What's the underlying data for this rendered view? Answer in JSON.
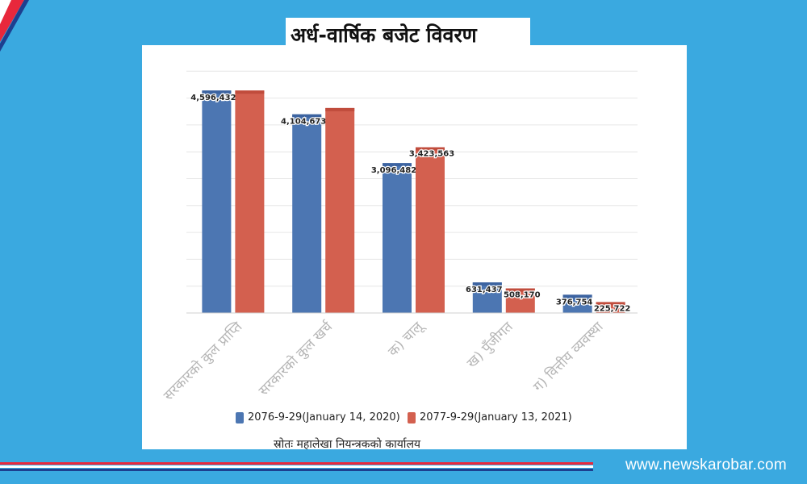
{
  "header": {
    "title": "अर्ध-वार्षिक बजेट विवरण"
  },
  "footer": {
    "source": "स्रोतः महालेखा नियन्त्रकको कार्यालय",
    "website": "www.newskarobar.com"
  },
  "colors": {
    "background": "#3aa9e0",
    "series_2076": "#4c76b2",
    "series_2077": "#d3604f"
  },
  "chart_data": {
    "type": "bar",
    "title": "अर्ध-वार्षिक बजेट विवरण",
    "categories": [
      "सरकारको कुल प्राप्ति",
      "सरकारको कुल खर्च",
      "क) चालू",
      "ख) पुँजीगत",
      "ग) वित्तीय व्यवस्था"
    ],
    "series": [
      {
        "name": "2076-9-29(January 14, 2020)",
        "values": [
          4596432,
          4104673,
          3096482,
          631437,
          376754
        ],
        "labels": [
          "4,596,432",
          "4,104,673",
          "3,096,482",
          "631,437",
          "376,754"
        ]
      },
      {
        "name": "2077-9-29(January 13, 2021)",
        "values": [
          4596432,
          4235000,
          3423563,
          508170,
          225722
        ],
        "labels": [
          "",
          "",
          "3,423,563",
          "508,170",
          "225,722"
        ]
      }
    ],
    "ylim": [
      0,
      5000000
    ],
    "grid": true,
    "legend_position": "bottom"
  }
}
